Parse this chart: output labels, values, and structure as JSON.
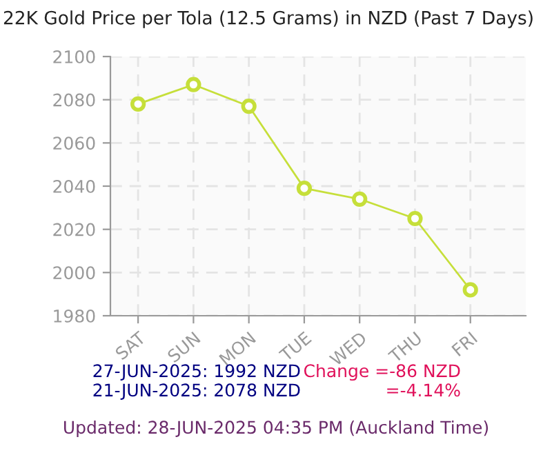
{
  "chart_data": {
    "type": "line",
    "title": "22K Gold Price per Tola (12.5 Grams) in NZD (Past 7 Days)",
    "categories": [
      "SAT",
      "SUN",
      "MON",
      "TUE",
      "WED",
      "THU",
      "FRI"
    ],
    "series": [
      {
        "color": "#c6df3a",
        "values": [
          2078,
          2087,
          2077,
          2039,
          2034,
          2025,
          1992
        ]
      }
    ],
    "ylim": [
      1980,
      2100
    ],
    "yticks": [
      1980,
      2000,
      2020,
      2040,
      2060,
      2080,
      2100
    ],
    "grid": true,
    "marker": "circle",
    "line_style": "solid",
    "annotations": [
      "27-JUN-2025: 1992 NZD",
      "21-JUN-2025: 2078 NZD",
      "Change =-86 NZD",
      "=-4.14%",
      "Updated: 28-JUN-2025 04:35 PM (Auckland Time)"
    ]
  }
}
